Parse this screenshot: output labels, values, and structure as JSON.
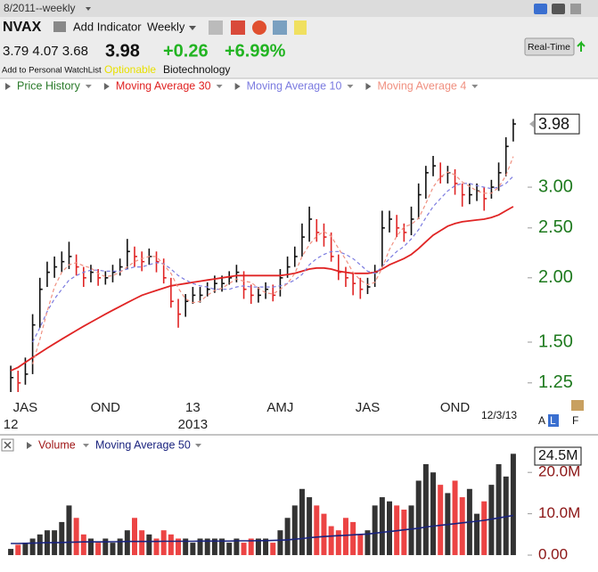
{
  "header": {
    "period": "8/2011--weekly",
    "symbol": "NVAX",
    "add_indicator": "Add Indicator",
    "interval": "Weekly",
    "ohl": "3.79 4.07 3.68",
    "last": "3.98",
    "change": "+0.26",
    "change_pct": "+6.99%",
    "watchlist": "Add to Personal WatchList",
    "optionable": "Optionable",
    "industry": "Biotechnology",
    "realtime": "Real-Time"
  },
  "chart_data": [
    {
      "type": "ohlc",
      "log_scale": true,
      "ylim": [
        1.2,
        4.56
      ],
      "yticks": [
        1.25,
        {
          "value": 1.5,
          "label": "1.50"
        },
        {
          "value": 2,
          "label": "2.00"
        },
        {
          "value": 2.5,
          "label": "2.50"
        },
        {
          "value": 3,
          "label": "3.00"
        }
      ],
      "last_value_label": "3.98",
      "categories": [
        null,
        null,
        "JAS",
        null,
        null,
        null,
        null,
        null,
        null,
        null,
        null,
        null,
        null,
        "OND",
        null,
        null,
        null,
        null,
        null,
        null,
        null,
        null,
        null,
        null,
        null,
        "13",
        null,
        null,
        null,
        null,
        null,
        null,
        null,
        null,
        null,
        null,
        null,
        "AMJ",
        null,
        null,
        null,
        null,
        null,
        null,
        null,
        null,
        null,
        null,
        null,
        "JAS",
        null,
        null,
        null,
        null,
        null,
        null,
        null,
        null,
        null,
        null,
        null,
        "OND",
        null,
        null,
        null,
        null,
        null,
        null,
        null,
        null
      ],
      "year_labels": [
        "12",
        null,
        null,
        null,
        null,
        null,
        null,
        null,
        null,
        null,
        null,
        null,
        null,
        null,
        null,
        null,
        null,
        null,
        null,
        null,
        null,
        null,
        null,
        null,
        null,
        "2013",
        null,
        null,
        null,
        null,
        null,
        null,
        null,
        null,
        null,
        null,
        null,
        null,
        null,
        null,
        null,
        null,
        null,
        null,
        null,
        null,
        null,
        null,
        null,
        null,
        null,
        null,
        null,
        null,
        null,
        null,
        null,
        null,
        null,
        null,
        null,
        null,
        null,
        null,
        null,
        null,
        null,
        null,
        null,
        null
      ],
      "price": {
        "name": "Price History",
        "legend_color": "#2a7a2a",
        "up_color": "#111111",
        "down_color": "#e02424",
        "high": [
          1.35,
          1.32,
          1.4,
          1.7,
          2.0,
          2.15,
          2.2,
          2.25,
          2.35,
          2.22,
          2.1,
          2.12,
          2.08,
          2.06,
          2.12,
          2.18,
          2.38,
          2.3,
          2.25,
          2.28,
          2.25,
          2.18,
          2.0,
          1.82,
          1.86,
          1.92,
          1.92,
          1.96,
          2.02,
          2.02,
          2.06,
          2.12,
          2.06,
          1.94,
          1.92,
          1.96,
          1.94,
          2.08,
          2.2,
          2.3,
          2.55,
          2.75,
          2.6,
          2.55,
          2.45,
          2.22,
          2.1,
          2.05,
          2.0,
          2.0,
          2.12,
          2.7,
          2.7,
          2.65,
          2.55,
          2.75,
          3.05,
          3.3,
          3.45,
          3.35,
          3.3,
          3.25,
          3.05,
          3.05,
          3.05,
          3.0,
          3.1,
          3.35,
          3.75,
          4.07
        ],
        "low": [
          1.2,
          1.2,
          1.24,
          1.3,
          1.6,
          1.92,
          2.0,
          2.05,
          2.08,
          2.02,
          1.92,
          1.96,
          1.93,
          1.94,
          1.96,
          2.02,
          2.08,
          2.1,
          2.06,
          2.12,
          2.05,
          1.95,
          1.75,
          1.6,
          1.68,
          1.78,
          1.79,
          1.84,
          1.87,
          1.88,
          1.94,
          1.96,
          1.82,
          1.78,
          1.79,
          1.82,
          1.8,
          1.84,
          2.0,
          2.1,
          2.2,
          2.35,
          2.35,
          2.3,
          2.15,
          1.98,
          1.92,
          1.85,
          1.82,
          1.86,
          1.92,
          2.1,
          2.45,
          2.4,
          2.35,
          2.42,
          2.6,
          2.85,
          3.15,
          3.05,
          3.05,
          2.9,
          2.75,
          2.78,
          2.82,
          2.7,
          2.85,
          2.95,
          3.15,
          3.68
        ],
        "close": [
          1.28,
          1.25,
          1.3,
          1.62,
          1.9,
          2.05,
          2.1,
          2.15,
          2.2,
          2.1,
          2.0,
          2.05,
          2.0,
          2.0,
          2.05,
          2.1,
          2.25,
          2.2,
          2.15,
          2.2,
          2.15,
          2.0,
          1.8,
          1.7,
          1.8,
          1.85,
          1.85,
          1.9,
          1.95,
          1.95,
          2.0,
          2.05,
          1.9,
          1.85,
          1.85,
          1.9,
          1.85,
          2.0,
          2.1,
          2.2,
          2.4,
          2.6,
          2.45,
          2.4,
          2.2,
          2.05,
          2.0,
          1.95,
          1.9,
          1.92,
          2.05,
          2.5,
          2.6,
          2.5,
          2.45,
          2.6,
          2.9,
          3.2,
          3.3,
          3.15,
          3.2,
          3.05,
          2.9,
          2.9,
          2.95,
          2.85,
          3.0,
          3.2,
          3.6,
          3.98
        ]
      },
      "series": [
        {
          "name": "Moving Average 30",
          "color": "#e02424",
          "dashed": false,
          "values": [
            1.32,
            1.34,
            1.37,
            1.4,
            1.43,
            1.46,
            1.49,
            1.52,
            1.55,
            1.58,
            1.61,
            1.64,
            1.67,
            1.7,
            1.73,
            1.76,
            1.79,
            1.82,
            1.85,
            1.87,
            1.89,
            1.91,
            1.93,
            1.94,
            1.95,
            1.96,
            1.97,
            1.98,
            1.99,
            2.0,
            2.01,
            2.02,
            2.02,
            2.02,
            2.02,
            2.02,
            2.02,
            2.02,
            2.03,
            2.04,
            2.06,
            2.08,
            2.09,
            2.09,
            2.08,
            2.06,
            2.05,
            2.04,
            2.04,
            2.04,
            2.05,
            2.08,
            2.12,
            2.15,
            2.18,
            2.22,
            2.28,
            2.35,
            2.42,
            2.47,
            2.52,
            2.55,
            2.57,
            2.58,
            2.59,
            2.6,
            2.62,
            2.65,
            2.7,
            2.75
          ]
        },
        {
          "name": "Moving Average 10",
          "color": "#7c7ce0",
          "dashed": true,
          "values": [
            null,
            null,
            null,
            1.5,
            1.6,
            1.72,
            1.82,
            1.9,
            1.98,
            2.02,
            2.05,
            2.07,
            2.07,
            2.06,
            2.06,
            2.06,
            2.08,
            2.1,
            2.1,
            2.12,
            2.14,
            2.13,
            2.08,
            2.02,
            1.98,
            1.95,
            1.93,
            1.92,
            1.9,
            1.9,
            1.9,
            1.92,
            1.93,
            1.92,
            1.92,
            1.92,
            1.92,
            1.93,
            1.95,
            1.98,
            2.03,
            2.12,
            2.18,
            2.22,
            2.25,
            2.25,
            2.22,
            2.18,
            2.12,
            2.06,
            2.04,
            2.1,
            2.18,
            2.25,
            2.3,
            2.38,
            2.48,
            2.62,
            2.75,
            2.85,
            2.95,
            3.02,
            3.05,
            3.05,
            3.02,
            3.0,
            2.98,
            3.0,
            3.05,
            3.15
          ]
        },
        {
          "name": "Moving Average 4",
          "color": "#f09080",
          "dashed": true,
          "values": [
            null,
            null,
            null,
            1.36,
            1.52,
            1.72,
            1.92,
            2.05,
            2.12,
            2.14,
            2.11,
            2.09,
            2.04,
            2.01,
            2.02,
            2.05,
            2.1,
            2.15,
            2.18,
            2.2,
            2.2,
            2.12,
            2.04,
            1.91,
            1.82,
            1.79,
            1.8,
            1.85,
            1.89,
            1.91,
            1.95,
            1.99,
            1.97,
            1.96,
            1.91,
            1.87,
            1.86,
            1.9,
            1.95,
            2.04,
            2.2,
            2.32,
            2.41,
            2.46,
            2.41,
            2.28,
            2.17,
            2.05,
            1.98,
            1.94,
            1.96,
            2.09,
            2.27,
            2.41,
            2.51,
            2.54,
            2.61,
            2.79,
            3.0,
            3.14,
            3.21,
            3.17,
            3.07,
            3.01,
            2.95,
            2.92,
            2.92,
            3.0,
            3.16,
            3.44
          ]
        }
      ]
    },
    {
      "type": "bar",
      "ylim": [
        -1500000,
        25000000
      ],
      "yticks": [
        {
          "value": 0,
          "label": "0.00"
        },
        {
          "value": 10000000,
          "label": "10.0M"
        },
        {
          "value": 20000000,
          "label": "20.0M"
        }
      ],
      "last_value_label": "24.5M",
      "series": [
        {
          "name": "Volume",
          "legend_color": "#a01818",
          "up_color": "#333333",
          "down_color": "#ec4444",
          "values": [
            1500000,
            2500000,
            3000000,
            4000000,
            5000000,
            6000000,
            6000000,
            8000000,
            12000000,
            9000000,
            5000000,
            4000000,
            3000000,
            4000000,
            3000000,
            4000000,
            6000000,
            9000000,
            6000000,
            5000000,
            4000000,
            6000000,
            5000000,
            4000000,
            4000000,
            3000000,
            4000000,
            4000000,
            4000000,
            4000000,
            3000000,
            4000000,
            3000000,
            4000000,
            4000000,
            4000000,
            3000000,
            6000000,
            9000000,
            12000000,
            16000000,
            14000000,
            12000000,
            10000000,
            7000000,
            6000000,
            9000000,
            8000000,
            5000000,
            6000000,
            12000000,
            14000000,
            13000000,
            12000000,
            11000000,
            12000000,
            18000000,
            22000000,
            20000000,
            17000000,
            15000000,
            18000000,
            14000000,
            16000000,
            10000000,
            13000000,
            17000000,
            22000000,
            19000000,
            24500000
          ]
        }
      ],
      "line": {
        "name": "Moving Average 50",
        "color": "#1a237e",
        "values": [
          2800000,
          2800000,
          2850000,
          2900000,
          2950000,
          3000000,
          3000000,
          3050000,
          3100000,
          3150000,
          3200000,
          3200000,
          3200000,
          3200000,
          3250000,
          3250000,
          3300000,
          3300000,
          3300000,
          3300000,
          3300000,
          3350000,
          3350000,
          3350000,
          3350000,
          3350000,
          3400000,
          3400000,
          3400000,
          3400000,
          3400000,
          3450000,
          3450000,
          3450000,
          3500000,
          3500000,
          3550000,
          3600000,
          3700000,
          3850000,
          4000000,
          4200000,
          4350000,
          4500000,
          4600000,
          4700000,
          4800000,
          4900000,
          5000000,
          5100000,
          5300000,
          5500000,
          5700000,
          5900000,
          6100000,
          6300000,
          6500000,
          6800000,
          7000000,
          7200000,
          7400000,
          7600000,
          7800000,
          8000000,
          8200000,
          8400000,
          8700000,
          9000000,
          9300000,
          9600000
        ]
      }
    }
  ],
  "footer": {
    "date": "12/3/13",
    "buttons": [
      "A",
      "L",
      "F"
    ]
  }
}
